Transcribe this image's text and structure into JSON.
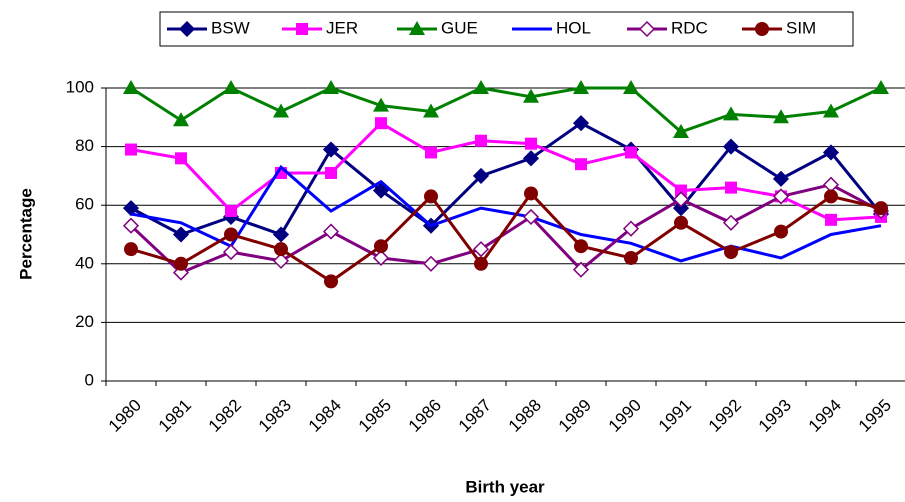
{
  "chart_data": {
    "type": "line",
    "x_label": "Birth year",
    "y_label": "Percentage",
    "categories": [
      "1980",
      "1981",
      "1982",
      "1983",
      "1984",
      "1985",
      "1986",
      "1987",
      "1988",
      "1989",
      "1990",
      "1991",
      "1992",
      "1993",
      "1994",
      "1995"
    ],
    "series": [
      {
        "name": "BSW",
        "color": "#000080",
        "marker": "diamond",
        "values": [
          59,
          50,
          56,
          50,
          79,
          65,
          53,
          70,
          76,
          88,
          79,
          59,
          80,
          69,
          78,
          57
        ]
      },
      {
        "name": "JER",
        "color": "#FF00FF",
        "marker": "square",
        "values": [
          79,
          76,
          58,
          71,
          71,
          88,
          78,
          82,
          81,
          74,
          78,
          65,
          66,
          63,
          55,
          56
        ]
      },
      {
        "name": "GUE",
        "color": "#008000",
        "marker": "triangle",
        "values": [
          100,
          89,
          100,
          92,
          100,
          94,
          92,
          100,
          97,
          100,
          100,
          85,
          91,
          90,
          92,
          100
        ]
      },
      {
        "name": "HOL",
        "color": "#0000FF",
        "marker": "none",
        "values": [
          57,
          54,
          46,
          73,
          58,
          68,
          53,
          59,
          56,
          50,
          47,
          41,
          46,
          42,
          50,
          53
        ]
      },
      {
        "name": "RDC",
        "color": "#800080",
        "marker": "open-diamond",
        "values": [
          53,
          37,
          44,
          41,
          51,
          42,
          40,
          45,
          56,
          38,
          52,
          62,
          54,
          63,
          67,
          58
        ]
      },
      {
        "name": "SIM",
        "color": "#800000",
        "marker": "circle",
        "values": [
          45,
          40,
          50,
          45,
          34,
          46,
          63,
          40,
          64,
          46,
          42,
          54,
          44,
          51,
          63,
          59
        ]
      }
    ],
    "ylim": [
      0,
      100
    ],
    "yticks": [
      0,
      20,
      40,
      60,
      80,
      100
    ],
    "grid": true
  }
}
